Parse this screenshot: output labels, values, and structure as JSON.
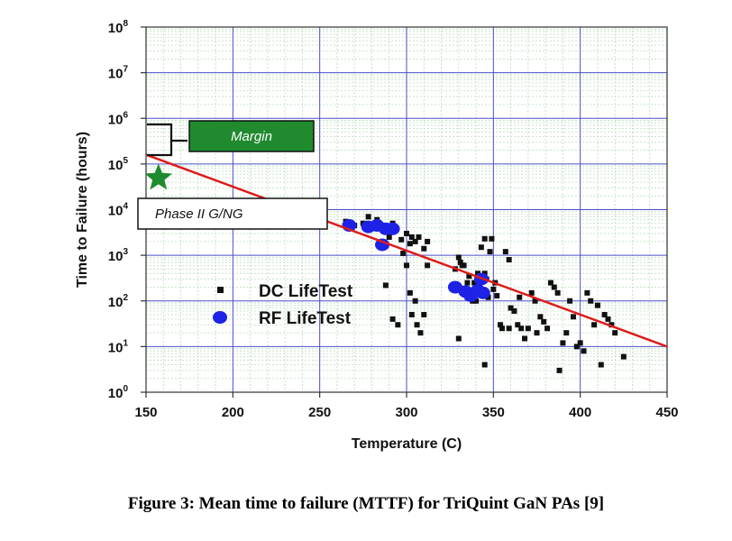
{
  "caption": "Figure 3: Mean time to failure (MTTF) for TriQuint GaN PAs [9]",
  "chart_data": {
    "type": "scatter",
    "xlabel": "Temperature (C)",
    "ylabel": "Time to Failure (hours)",
    "xlim": [
      150,
      450
    ],
    "ylim": [
      1,
      100000000
    ],
    "y_scale": "log",
    "grid": true,
    "x_ticks": [
      "150",
      "200",
      "250",
      "300",
      "350",
      "400",
      "450"
    ],
    "y_ticks": [
      {
        "base": "10",
        "exp": "0"
      },
      {
        "base": "10",
        "exp": "1"
      },
      {
        "base": "10",
        "exp": "2"
      },
      {
        "base": "10",
        "exp": "3"
      },
      {
        "base": "10",
        "exp": "4"
      },
      {
        "base": "10",
        "exp": "5"
      },
      {
        "base": "10",
        "exp": "6"
      },
      {
        "base": "10",
        "exp": "7"
      },
      {
        "base": "10",
        "exp": "8"
      }
    ],
    "legend_placement": "bottom-left",
    "colors": {
      "dc": "#111111",
      "rf": "#1e22e6",
      "fit": "#dd1b1b",
      "box": "#1f8a2e",
      "star": "#1f8a2e"
    },
    "series": [
      {
        "name": "DC LifeTest",
        "marker": "square",
        "points": [
          [
            265,
            5500
          ],
          [
            270,
            4500
          ],
          [
            275,
            5000
          ],
          [
            278,
            7000
          ],
          [
            280,
            4000
          ],
          [
            283,
            6000
          ],
          [
            285,
            4500
          ],
          [
            290,
            2500
          ],
          [
            292,
            5000
          ],
          [
            297,
            2200
          ],
          [
            300,
            3000
          ],
          [
            302,
            1800
          ],
          [
            303,
            2500
          ],
          [
            305,
            2000
          ],
          [
            307,
            2500
          ],
          [
            310,
            1400
          ],
          [
            312,
            2000
          ],
          [
            287,
            1700
          ],
          [
            288,
            220
          ],
          [
            292,
            40
          ],
          [
            295,
            30
          ],
          [
            298,
            1100
          ],
          [
            300,
            600
          ],
          [
            302,
            150
          ],
          [
            303,
            50
          ],
          [
            305,
            100
          ],
          [
            306,
            30
          ],
          [
            308,
            20
          ],
          [
            310,
            50
          ],
          [
            312,
            600
          ],
          [
            328,
            500
          ],
          [
            330,
            900
          ],
          [
            331,
            700
          ],
          [
            332,
            600
          ],
          [
            333,
            600
          ],
          [
            335,
            250
          ],
          [
            336,
            350
          ],
          [
            337,
            150
          ],
          [
            338,
            100
          ],
          [
            339,
            250
          ],
          [
            340,
            100
          ],
          [
            341,
            400
          ],
          [
            342,
            200
          ],
          [
            343,
            1500
          ],
          [
            344,
            150
          ],
          [
            345,
            2300
          ],
          [
            346,
            300
          ],
          [
            347,
            120
          ],
          [
            348,
            1200
          ],
          [
            349,
            2300
          ],
          [
            350,
            180
          ],
          [
            351,
            250
          ],
          [
            352,
            130
          ],
          [
            354,
            30
          ],
          [
            355,
            25
          ],
          [
            357,
            1200
          ],
          [
            359,
            25
          ],
          [
            360,
            70
          ],
          [
            362,
            60
          ],
          [
            364,
            30
          ],
          [
            365,
            120
          ],
          [
            366,
            25
          ],
          [
            368,
            15
          ],
          [
            370,
            25
          ],
          [
            372,
            150
          ],
          [
            374,
            100
          ],
          [
            375,
            20
          ],
          [
            377,
            45
          ],
          [
            379,
            35
          ],
          [
            381,
            25
          ],
          [
            383,
            250
          ],
          [
            385,
            200
          ],
          [
            387,
            150
          ],
          [
            388,
            3
          ],
          [
            390,
            12
          ],
          [
            392,
            20
          ],
          [
            394,
            100
          ],
          [
            396,
            45
          ],
          [
            398,
            10
          ],
          [
            400,
            12
          ],
          [
            402,
            8
          ],
          [
            404,
            150
          ],
          [
            406,
            100
          ],
          [
            408,
            30
          ],
          [
            410,
            80
          ],
          [
            412,
            4
          ],
          [
            414,
            50
          ],
          [
            416,
            40
          ],
          [
            418,
            30
          ],
          [
            420,
            20
          ],
          [
            425,
            6
          ],
          [
            330,
            15
          ],
          [
            336,
            120
          ],
          [
            345,
            4
          ],
          [
            335,
            120
          ],
          [
            345,
            400
          ],
          [
            359,
            800
          ]
        ]
      },
      {
        "name": "RF LifeTest",
        "marker": "circle",
        "points": [
          [
            267,
            4500
          ],
          [
            278,
            4200
          ],
          [
            283,
            4500
          ],
          [
            288,
            3800
          ],
          [
            292,
            3800
          ],
          [
            286,
            1700
          ],
          [
            328,
            200
          ],
          [
            334,
            160
          ],
          [
            337,
            130
          ],
          [
            341,
            170
          ],
          [
            344,
            150
          ],
          [
            343,
            300
          ]
        ]
      }
    ],
    "fit_line": {
      "start": [
        150,
        160000
      ],
      "end": [
        450,
        10
      ]
    },
    "annotations": {
      "margin_label": "Margin",
      "phase_label": "Phase II G/NG",
      "star_point": [
        153,
        45000
      ]
    }
  }
}
